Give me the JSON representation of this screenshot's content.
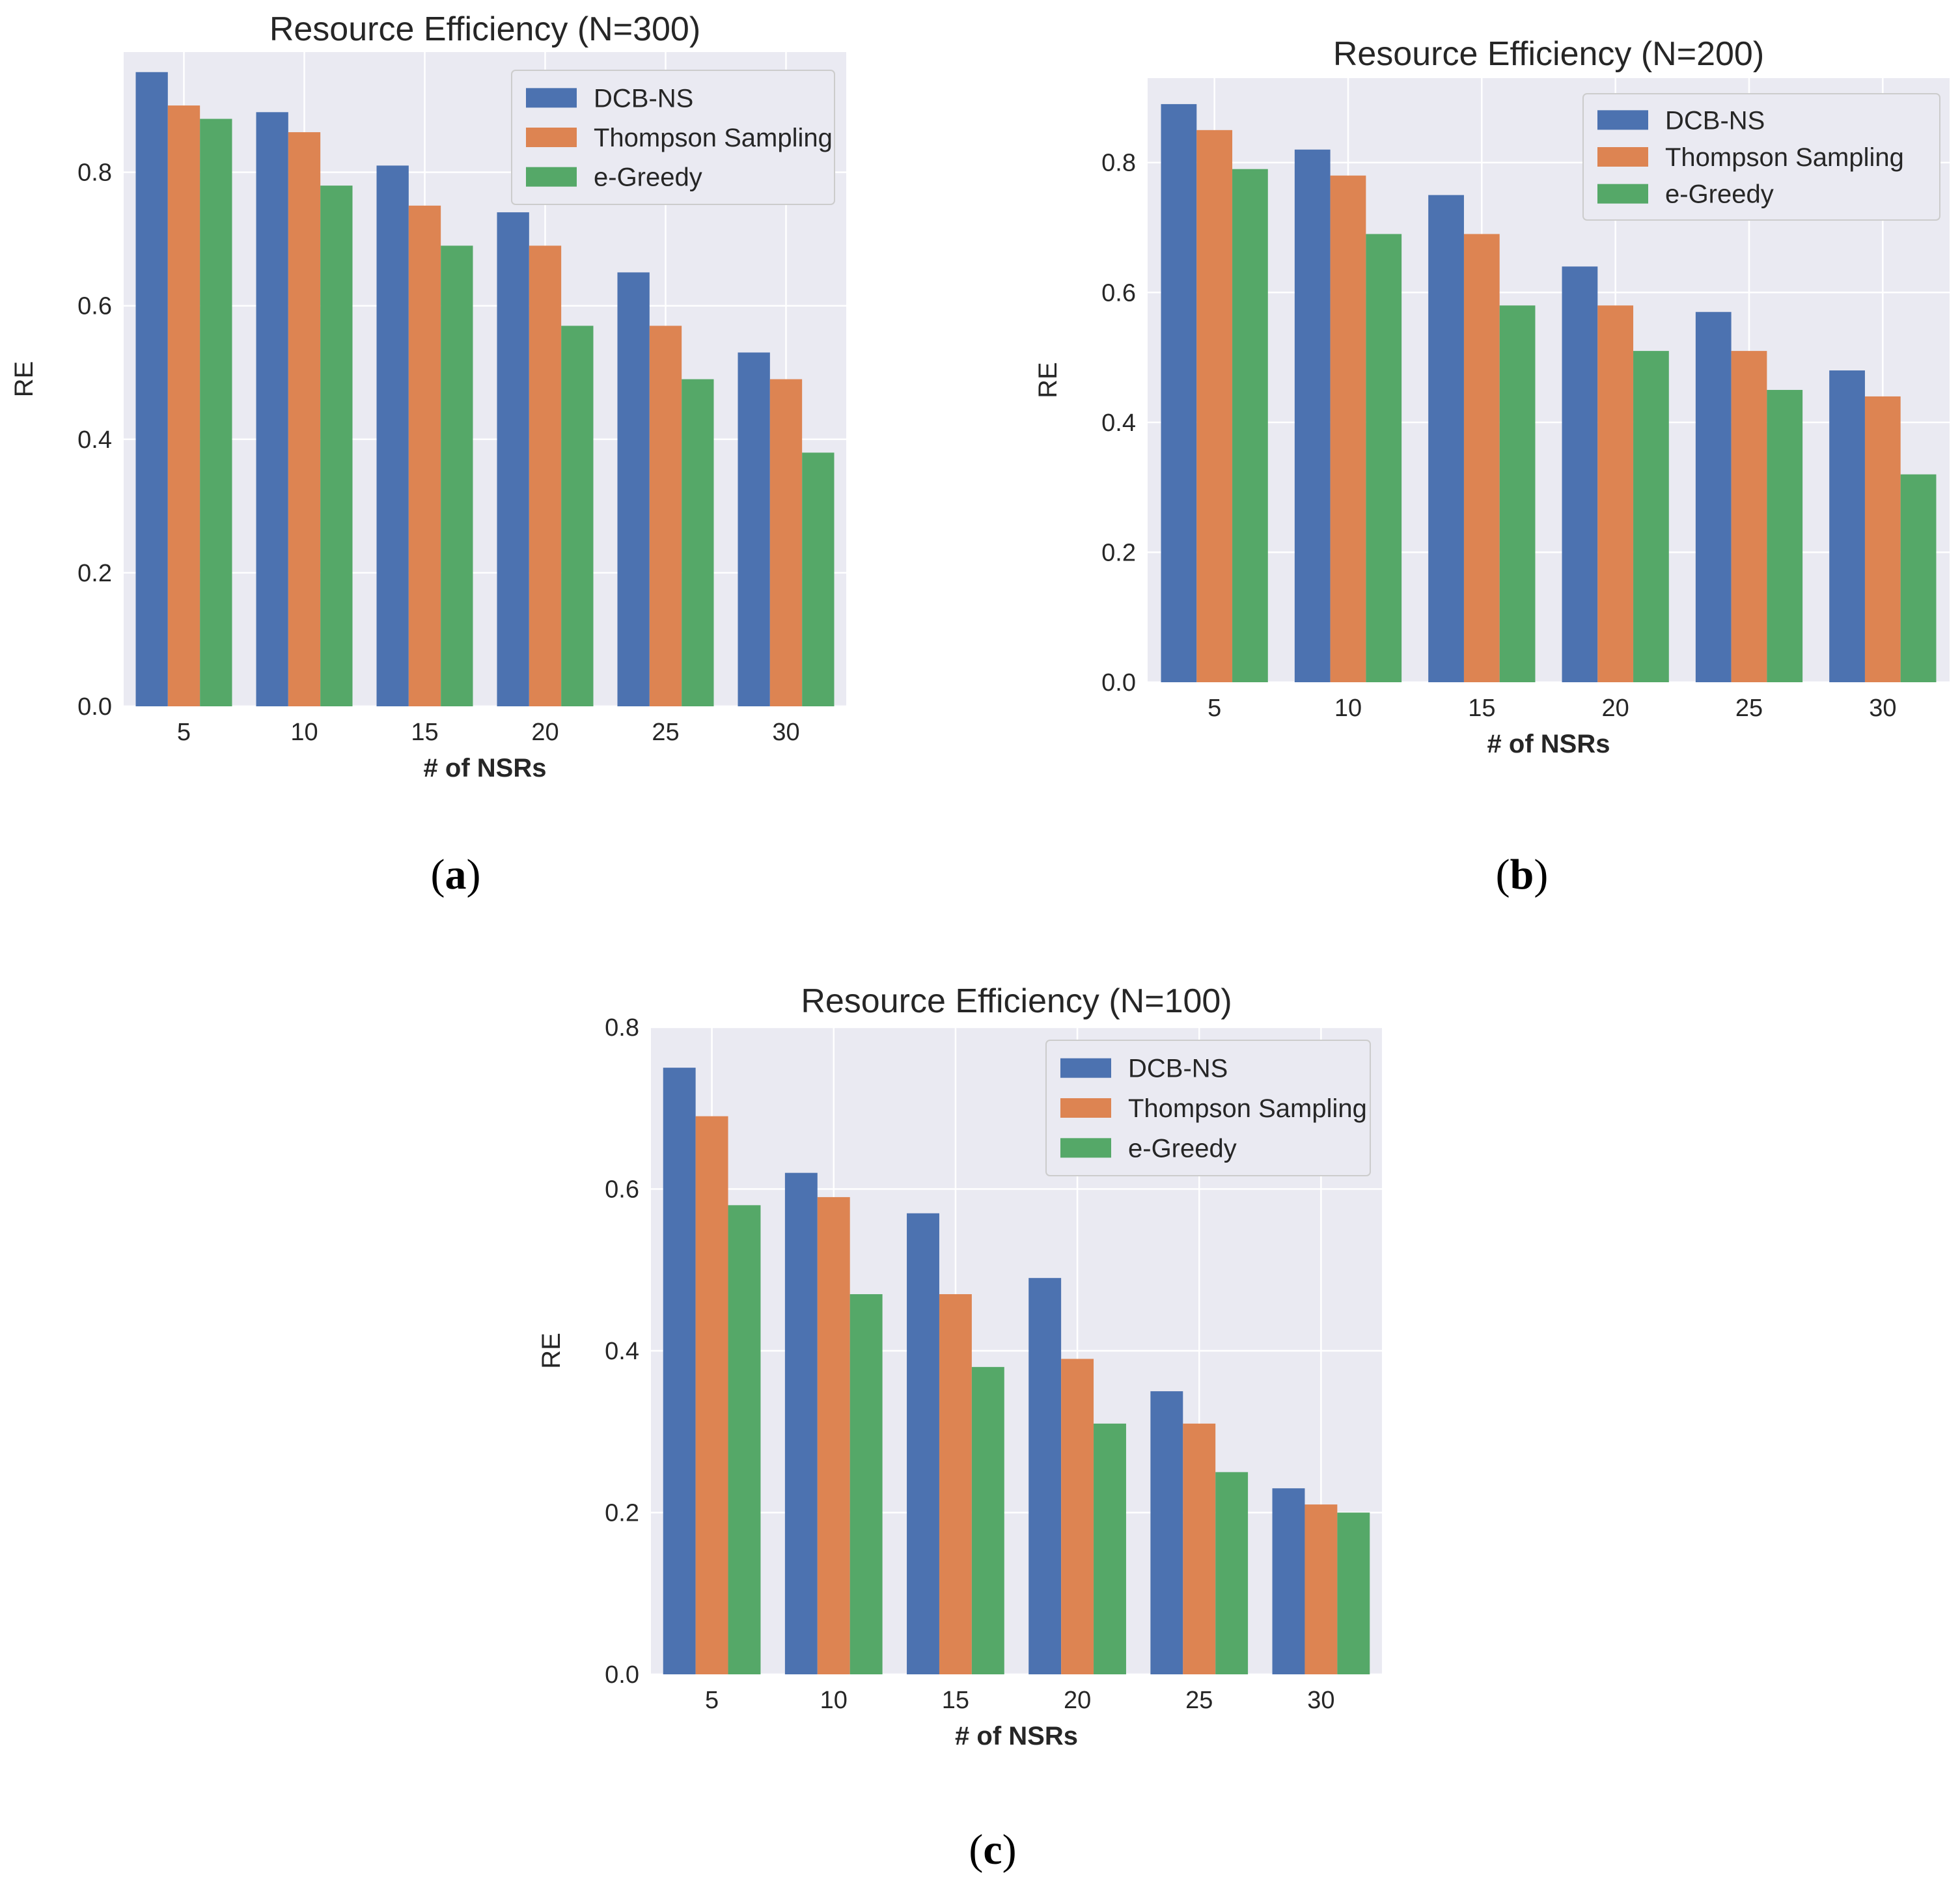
{
  "chart_data": [
    {
      "type": "bar",
      "title": "Resource Efficiency (N=300)",
      "xlabel": "# of NSRs",
      "ylabel": "RE",
      "caption": {
        "open": "(",
        "letter": "a",
        "close": ")"
      },
      "categories": [
        "5",
        "10",
        "15",
        "20",
        "25",
        "30"
      ],
      "ylim": [
        0,
        0.98
      ],
      "yticks": [
        "0.0",
        "0.2",
        "0.4",
        "0.6",
        "0.8"
      ],
      "ytick_values": [
        0,
        0.2,
        0.4,
        0.6,
        0.8
      ],
      "legend_position": "top-right",
      "series": [
        {
          "name": "DCB-NS",
          "color": "#4c72b0",
          "values": [
            0.95,
            0.89,
            0.81,
            0.74,
            0.65,
            0.53
          ]
        },
        {
          "name": "Thompson Sampling",
          "color": "#dd8452",
          "values": [
            0.9,
            0.86,
            0.75,
            0.69,
            0.57,
            0.49
          ]
        },
        {
          "name": "e-Greedy",
          "color": "#55a868",
          "values": [
            0.88,
            0.78,
            0.69,
            0.57,
            0.49,
            0.38
          ]
        }
      ]
    },
    {
      "type": "bar",
      "title": "Resource Efficiency (N=200)",
      "xlabel": "# of NSRs",
      "ylabel": "RE",
      "caption": {
        "open": "(",
        "letter": "b",
        "close": ")"
      },
      "categories": [
        "5",
        "10",
        "15",
        "20",
        "25",
        "30"
      ],
      "ylim": [
        0,
        0.93
      ],
      "yticks": [
        "0.0",
        "0.2",
        "0.4",
        "0.6",
        "0.8"
      ],
      "ytick_values": [
        0,
        0.2,
        0.4,
        0.6,
        0.8
      ],
      "legend_position": "top-right",
      "series": [
        {
          "name": "DCB-NS",
          "color": "#4c72b0",
          "values": [
            0.89,
            0.82,
            0.75,
            0.64,
            0.57,
            0.48
          ]
        },
        {
          "name": "Thompson Sampling",
          "color": "#dd8452",
          "values": [
            0.85,
            0.78,
            0.69,
            0.58,
            0.51,
            0.44
          ]
        },
        {
          "name": "e-Greedy",
          "color": "#55a868",
          "values": [
            0.79,
            0.69,
            0.58,
            0.51,
            0.45,
            0.32
          ]
        }
      ]
    },
    {
      "type": "bar",
      "title": "Resource Efficiency (N=100)",
      "xlabel": "# of NSRs",
      "ylabel": "RE",
      "caption": {
        "open": "(",
        "letter": "c",
        "close": ")"
      },
      "categories": [
        "5",
        "10",
        "15",
        "20",
        "25",
        "30"
      ],
      "ylim": [
        0,
        0.8
      ],
      "yticks": [
        "0.0",
        "0.2",
        "0.4",
        "0.6",
        "0.8"
      ],
      "ytick_values": [
        0,
        0.2,
        0.4,
        0.6,
        0.8
      ],
      "legend_position": "top-right",
      "series": [
        {
          "name": "DCB-NS",
          "color": "#4c72b0",
          "values": [
            0.75,
            0.62,
            0.57,
            0.49,
            0.35,
            0.23
          ]
        },
        {
          "name": "Thompson Sampling",
          "color": "#dd8452",
          "values": [
            0.69,
            0.59,
            0.47,
            0.39,
            0.31,
            0.21
          ]
        },
        {
          "name": "e-Greedy",
          "color": "#55a868",
          "values": [
            0.58,
            0.47,
            0.38,
            0.31,
            0.25,
            0.2
          ]
        }
      ]
    }
  ],
  "style": {
    "axes_background": "#eaeaf2",
    "grid_color": "#ffffff",
    "legend_background": "#eaeaf2",
    "legend_border": "#cccccc"
  }
}
